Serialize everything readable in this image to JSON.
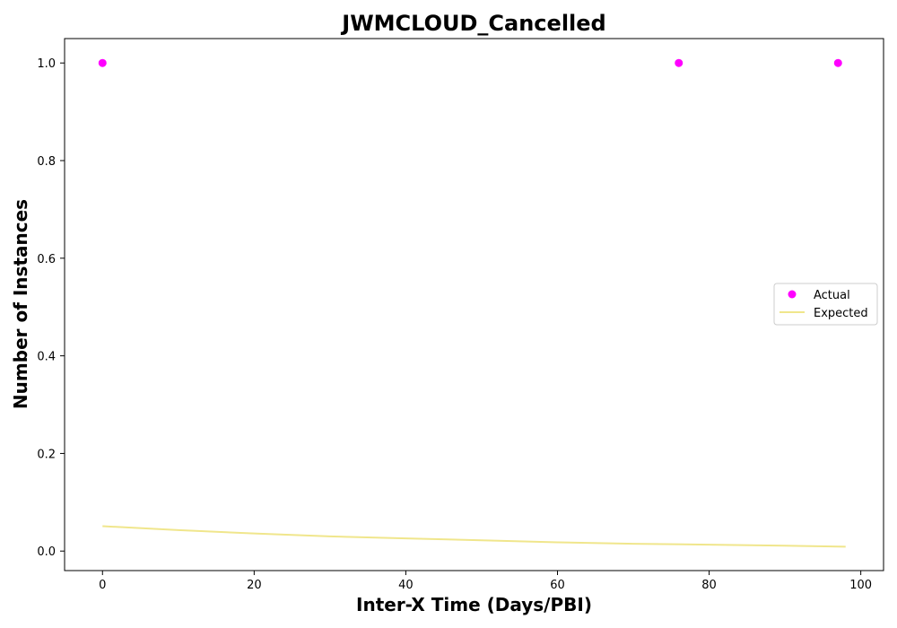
{
  "chart_data": {
    "type": "scatter",
    "title": "JWMCLOUD_Cancelled",
    "xlabel": "Inter-X Time (Days/PBI)",
    "ylabel": "Number of Instances",
    "xlim": [
      -5,
      103
    ],
    "ylim": [
      -0.04,
      1.05
    ],
    "xticks": [
      0,
      20,
      40,
      60,
      80,
      100
    ],
    "yticks": [
      0.0,
      0.2,
      0.4,
      0.6,
      0.8,
      1.0
    ],
    "xtick_labels": [
      "0",
      "20",
      "40",
      "60",
      "80",
      "100"
    ],
    "ytick_labels": [
      "0.0",
      "0.2",
      "0.4",
      "0.6",
      "0.8",
      "1.0"
    ],
    "grid": false,
    "legend_position": "center-right",
    "series": [
      {
        "name": "Actual",
        "kind": "scatter",
        "color": "#ff00ff",
        "x": [
          0,
          76,
          97
        ],
        "y": [
          1.0,
          1.0,
          1.0
        ]
      },
      {
        "name": "Expected",
        "kind": "line",
        "color": "#f0e68c",
        "x": [
          0,
          10,
          20,
          30,
          40,
          50,
          60,
          70,
          80,
          90,
          98
        ],
        "y": [
          0.051,
          0.043,
          0.036,
          0.03,
          0.026,
          0.022,
          0.018,
          0.015,
          0.013,
          0.011,
          0.009
        ]
      }
    ]
  }
}
